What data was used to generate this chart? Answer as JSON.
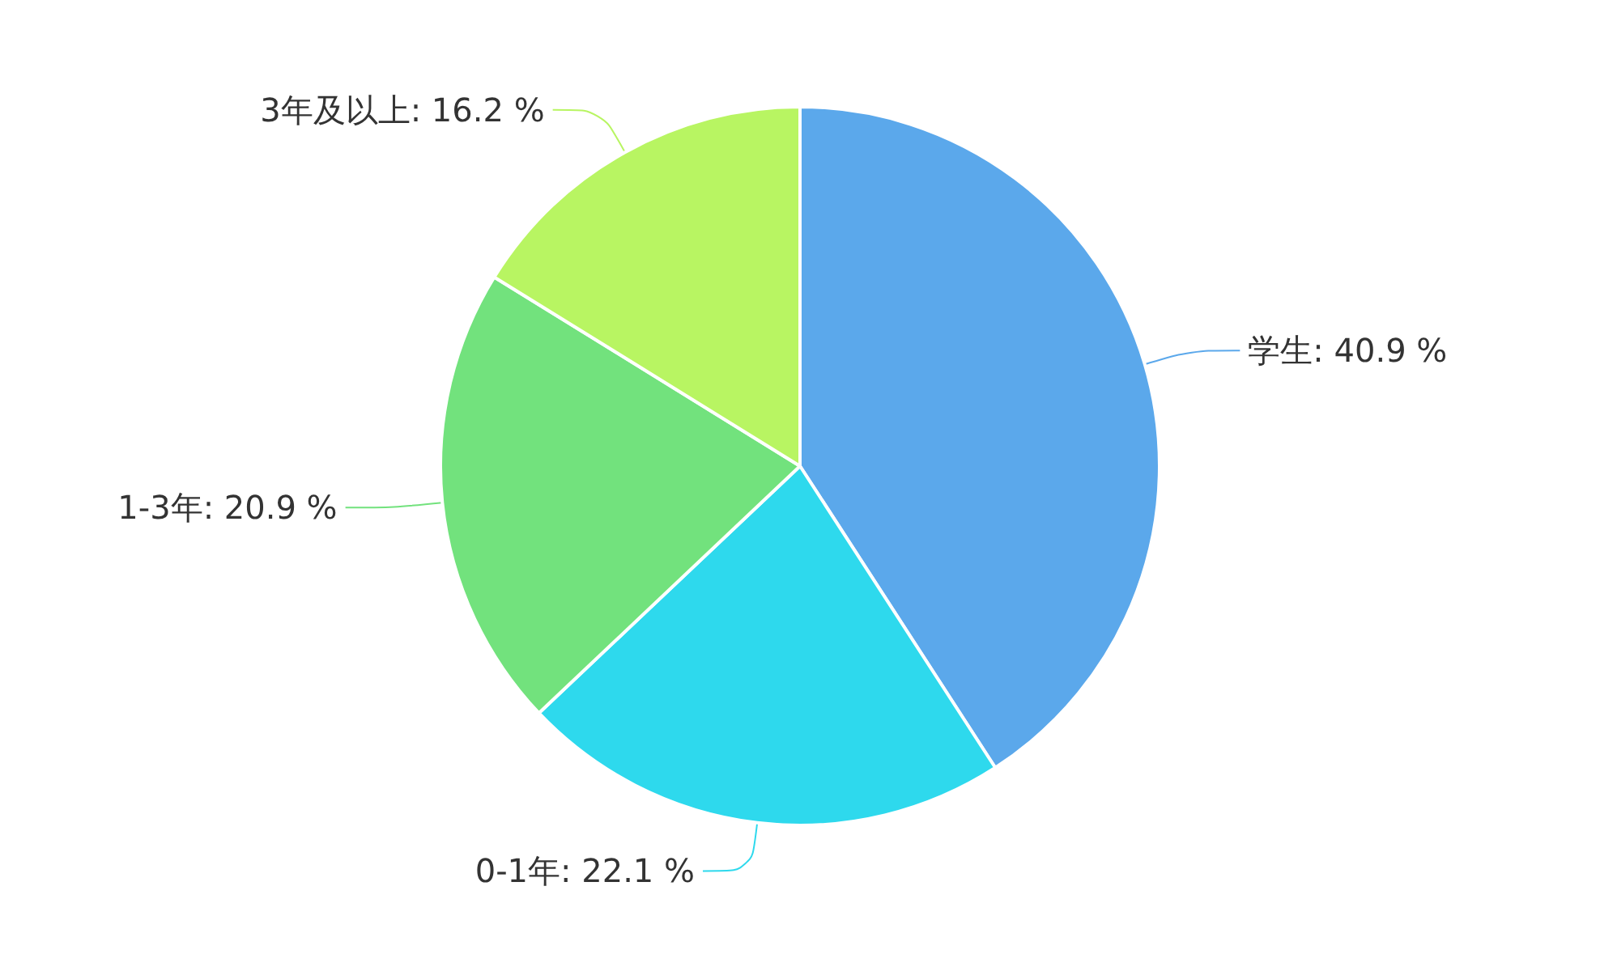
{
  "chart_data": {
    "type": "pie",
    "categories": [
      "学生",
      "0-1年",
      "1-3年",
      "3年及以上"
    ],
    "values": [
      40.9,
      22.1,
      20.9,
      16.2
    ],
    "value_labels": [
      "40.9 %",
      "22.1 %",
      "20.9 %",
      "16.2 %"
    ],
    "colors": [
      "#5ba8eb",
      "#2ed9ed",
      "#72e27d",
      "#b8f562"
    ],
    "legend": false
  }
}
